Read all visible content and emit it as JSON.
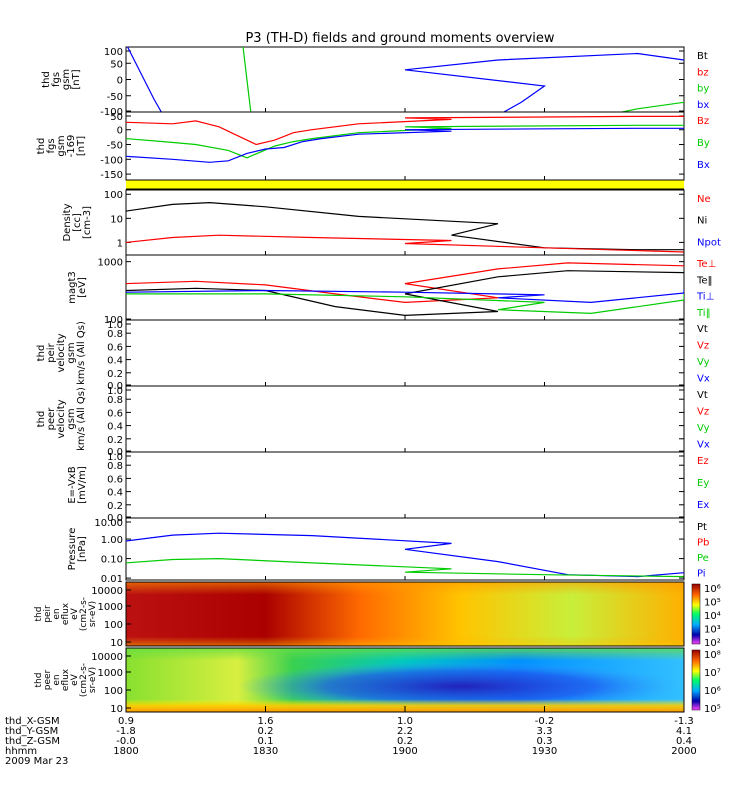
{
  "chart_data": {
    "type": "line",
    "title": "P3 (TH-D) fields and ground moments overview",
    "panels": [
      {
        "id": "fgs",
        "ylabel_lines": [
          "thd",
          "fgs",
          "gsm",
          "[nT]"
        ],
        "ticks": [
          "100",
          "50",
          "0",
          "-50",
          "-100"
        ],
        "ylim": [
          -100,
          100
        ],
        "legend": [
          {
            "name": "Bt",
            "color": "#000000"
          },
          {
            "name": "bz",
            "color": "#ff0000"
          },
          {
            "name": "by",
            "color": "#00cc00"
          },
          {
            "name": "bx",
            "color": "#0000ff"
          }
        ],
        "series": [
          {
            "name": "bx",
            "color": "#0000ff",
            "x": [
              1800,
              1806,
              1808,
              1880,
              1885,
              1890,
              1900,
              1920,
              1950,
              2000
            ],
            "y": [
              110,
              -60,
              -110,
              -110,
              -70,
              -20,
              30,
              60,
              80,
              60
            ]
          },
          {
            "name": "by",
            "color": "#00cc00",
            "x": [
              1825,
              1826,
              1827,
              1940,
              1950,
              1960,
              1970,
              1990,
              2000
            ],
            "y": [
              120,
              0,
              -120,
              -120,
              -90,
              -70,
              -50,
              -30,
              -20
            ]
          }
        ]
      },
      {
        "id": "fgs169",
        "ylabel_lines": [
          "thd",
          "fgs",
          "gsm",
          "-169",
          "[nT]"
        ],
        "ticks": [
          "50",
          "0",
          "-50",
          "-100",
          "-150"
        ],
        "ylim": [
          -170,
          60
        ],
        "legend": [
          {
            "name": "Bz",
            "color": "#ff0000"
          },
          {
            "name": "By",
            "color": "#00cc00"
          },
          {
            "name": "Bx",
            "color": "#0000ff"
          }
        ],
        "series": [
          {
            "name": "Bz",
            "color": "#ff0000",
            "x": [
              1800,
              1810,
              1815,
              1820,
              1824,
              1828,
              1832,
              1836,
              1840,
              1850,
              1870,
              1900,
              1950,
              2000
            ],
            "y": [
              25,
              20,
              30,
              10,
              -20,
              -50,
              -35,
              -10,
              0,
              20,
              35,
              40,
              45,
              45
            ]
          },
          {
            "name": "By",
            "color": "#00cc00",
            "x": [
              1800,
              1808,
              1815,
              1822,
              1826,
              1832,
              1836,
              1840,
              1850,
              1870,
              1900,
              1950,
              2000
            ],
            "y": [
              -30,
              -40,
              -50,
              -70,
              -95,
              -55,
              -40,
              -30,
              -10,
              5,
              10,
              15,
              15
            ]
          },
          {
            "name": "Bx",
            "color": "#0000ff",
            "x": [
              1800,
              1810,
              1818,
              1822,
              1826,
              1830,
              1834,
              1838,
              1842,
              1850,
              1870,
              1900,
              1950,
              2000
            ],
            "y": [
              -90,
              -100,
              -110,
              -105,
              -80,
              -65,
              -60,
              -40,
              -30,
              -15,
              -5,
              0,
              5,
              5
            ]
          }
        ]
      },
      {
        "id": "density",
        "ylabel_lines": [
          "Density",
          "[cc]",
          "[cm-3]"
        ],
        "ticks": [
          "100",
          "10",
          "1"
        ],
        "ylim": [
          0.3,
          150
        ],
        "log": true,
        "legend": [
          {
            "name": "Ne",
            "color": "#ff0000"
          },
          {
            "name": "Ni",
            "color": "#000000"
          },
          {
            "name": "Npot",
            "color": "#0000ff"
          }
        ],
        "series": [
          {
            "name": "Ni",
            "color": "#000000",
            "x": [
              1800,
              1810,
              1818,
              1830,
              1850,
              1880,
              1910,
              1930,
              1950,
              1970,
              1985,
              2000
            ],
            "y": [
              20,
              38,
              45,
              30,
              12,
              6,
              2,
              0.6,
              0.5,
              0.5,
              0.8,
              2.5
            ]
          },
          {
            "name": "Ne",
            "color": "#ff0000",
            "x": [
              1800,
              1810,
              1820,
              1840,
              1870,
              1900,
              1930,
              1960,
              2000
            ],
            "y": [
              1,
              1.6,
              2,
              1.6,
              1.2,
              0.9,
              0.6,
              0.4,
              0.3
            ]
          }
        ]
      },
      {
        "id": "temp",
        "ylabel_lines": [
          "magt3",
          "[eV]"
        ],
        "ticks": [
          "1000",
          "100"
        ],
        "ylim": [
          100,
          1300
        ],
        "log": true,
        "legend": [
          {
            "name": "Te⊥",
            "color": "#ff0000"
          },
          {
            "name": "Te‖",
            "color": "#000000"
          },
          {
            "name": "Ti⊥",
            "color": "#0000ff"
          },
          {
            "name": "Ti‖",
            "color": "#00cc00"
          }
        ],
        "series": [
          {
            "name": "Te⊥",
            "color": "#ff0000",
            "x": [
              1800,
              1815,
              1830,
              1845,
              1860,
              1880,
              1900,
              1920,
              1935,
              1960,
              1980,
              2000
            ],
            "y": [
              420,
              460,
              400,
              280,
              200,
              240,
              420,
              750,
              950,
              850,
              700,
              620
            ]
          },
          {
            "name": "Te‖",
            "color": "#000000",
            "x": [
              1800,
              1815,
              1830,
              1845,
              1860,
              1880,
              1900,
              1920,
              1935,
              1960,
              1980,
              2000
            ],
            "y": [
              320,
              350,
              320,
              170,
              120,
              140,
              280,
              550,
              700,
              650,
              600,
              560
            ]
          },
          {
            "name": "Ti⊥",
            "color": "#0000ff",
            "x": [
              1800,
              1830,
              1860,
              1890,
              1920,
              1940,
              1960,
              2000
            ],
            "y": [
              300,
              320,
              300,
              270,
              240,
              200,
              290,
              330
            ]
          },
          {
            "name": "Ti‖",
            "color": "#00cc00",
            "x": [
              1800,
              1830,
              1860,
              1890,
              1920,
              1940,
              1960,
              2000
            ],
            "y": [
              280,
              280,
              250,
              200,
              150,
              130,
              220,
              280
            ]
          }
        ]
      },
      {
        "id": "peir",
        "ylabel_lines": [
          "thd",
          "peir",
          "velocity",
          "gsm",
          "km/s (All Qs)"
        ],
        "ticks": [
          "1.0",
          "0.8",
          "0.6",
          "0.4",
          "0.2",
          "0.0"
        ],
        "ylim": [
          0,
          1
        ],
        "legend": [
          {
            "name": "Vt",
            "color": "#000000"
          },
          {
            "name": "Vz",
            "color": "#ff0000"
          },
          {
            "name": "Vy",
            "color": "#00cc00"
          },
          {
            "name": "Vx",
            "color": "#0000ff"
          }
        ],
        "series": []
      },
      {
        "id": "peer",
        "ylabel_lines": [
          "thd",
          "peer",
          "velocity",
          "gsm",
          "km/s (All Qs)"
        ],
        "ticks": [
          "1.0",
          "0.8",
          "0.6",
          "0.4",
          "0.2",
          "0.0"
        ],
        "ylim": [
          0,
          1
        ],
        "legend": [
          {
            "name": "Vt",
            "color": "#000000"
          },
          {
            "name": "Vz",
            "color": "#ff0000"
          },
          {
            "name": "Vy",
            "color": "#00cc00"
          },
          {
            "name": "Vx",
            "color": "#0000ff"
          }
        ],
        "series": []
      },
      {
        "id": "efield",
        "ylabel_lines": [
          "E=-VxB",
          "[mV/m]"
        ],
        "ticks": [
          "1.0",
          "0.8",
          "0.6",
          "0.4",
          "0.2",
          "0.0"
        ],
        "ylim": [
          0,
          1
        ],
        "legend": [
          {
            "name": "Ez",
            "color": "#ff0000"
          },
          {
            "name": "Ey",
            "color": "#00cc00"
          },
          {
            "name": "Ex",
            "color": "#0000ff"
          }
        ],
        "series": []
      },
      {
        "id": "pressure",
        "ylabel_lines": [
          "Pressure",
          "[nPa]"
        ],
        "ticks": [
          "10.00",
          "1.00",
          "0.10",
          "0.01"
        ],
        "ylim": [
          0.008,
          12
        ],
        "log": true,
        "legend": [
          {
            "name": "Pt",
            "color": "#000000"
          },
          {
            "name": "Pb",
            "color": "#ff0000"
          },
          {
            "name": "Pe",
            "color": "#00cc00"
          },
          {
            "name": "Pi",
            "color": "#0000ff"
          }
        ],
        "series": [
          {
            "name": "Pi",
            "color": "#0000ff",
            "x": [
              1800,
              1810,
              1820,
              1840,
              1870,
              1900,
              1920,
              1935,
              1950,
              1970,
              1990,
              2000
            ],
            "y": [
              0.8,
              1.6,
              2,
              1.5,
              0.6,
              0.3,
              0.07,
              0.015,
              0.012,
              0.03,
              0.07,
              0.12
            ]
          },
          {
            "name": "Pe",
            "color": "#00cc00",
            "x": [
              1800,
              1810,
              1820,
              1840,
              1870,
              1900,
              1930,
              1960,
              2000
            ],
            "y": [
              0.06,
              0.09,
              0.1,
              0.06,
              0.03,
              0.02,
              0.015,
              0.012,
              0.012
            ]
          }
        ]
      }
    ],
    "spectrograms": [
      {
        "id": "peir_en",
        "ylabel_lines": [
          "thd",
          "peir",
          "en",
          "eflux",
          "eV",
          "(cm2-s-",
          "sr-eV)"
        ],
        "ticks": [
          "10000",
          "1000",
          "100",
          "10"
        ],
        "colorbar_ticks": [
          "10⁶",
          "10⁵",
          "10⁴",
          "10³",
          "10²"
        ]
      },
      {
        "id": "peer_en",
        "ylabel_lines": [
          "thd",
          "peer",
          "en",
          "eflux",
          "eV",
          "(cm2-s-",
          "sr-eV)"
        ],
        "ticks": [
          "10000",
          "1000",
          "100",
          "10"
        ],
        "colorbar_ticks": [
          "10⁸",
          "10⁷",
          "10⁶",
          "10⁵"
        ]
      }
    ],
    "xaxis": {
      "tick_times": [
        1800,
        1830,
        1900,
        1930,
        2000
      ],
      "rows": [
        {
          "label": "thd_X-GSM",
          "values": [
            "0.9",
            "1.6",
            "1.0",
            "-0.2",
            "-1.3"
          ]
        },
        {
          "label": "thd_Y-GSM",
          "values": [
            "-1.8",
            "0.2",
            "2.2",
            "3.3",
            "4.1"
          ]
        },
        {
          "label": "thd_Z-GSM",
          "values": [
            "-0.0",
            "0.1",
            "0.2",
            "0.3",
            "0.4"
          ]
        },
        {
          "label": "hhmm",
          "values": [
            "1800",
            "1830",
            "1900",
            "1930",
            "2000"
          ]
        }
      ],
      "date": "2009 Mar 23"
    }
  }
}
